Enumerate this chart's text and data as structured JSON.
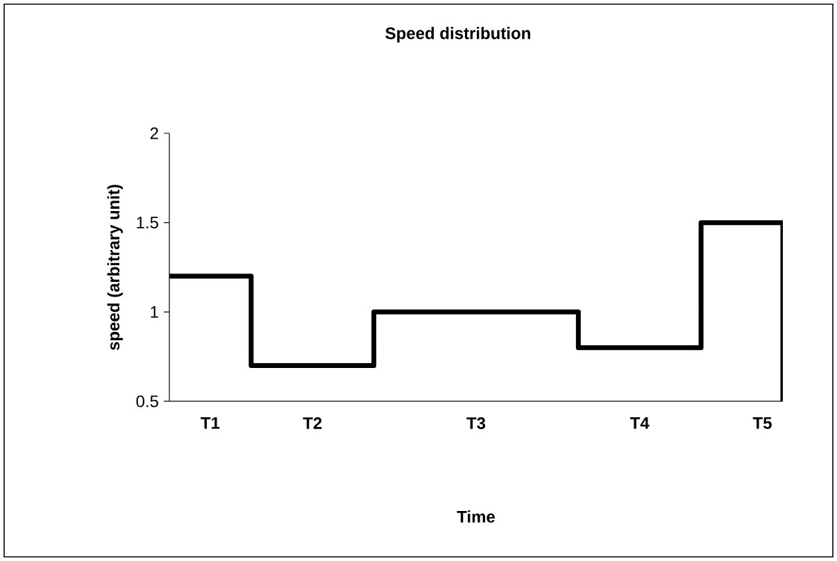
{
  "chart_data": {
    "type": "step",
    "title": "Speed distribution",
    "xlabel": "Time",
    "ylabel": "speed (arbitrary unit)",
    "categories": [
      null,
      null,
      "T1",
      null,
      null,
      null,
      null,
      "T2",
      null,
      null,
      null,
      null,
      null,
      null,
      null,
      "T3",
      null,
      null,
      null,
      null,
      null,
      null,
      null,
      "T4",
      null,
      null,
      null,
      null,
      null,
      "T5",
      null
    ],
    "values": [
      1.2,
      1.2,
      1.2,
      1.2,
      0.7,
      0.7,
      0.7,
      0.7,
      0.7,
      0.7,
      1.0,
      1.0,
      1.0,
      1.0,
      1.0,
      1.0,
      1.0,
      1.0,
      1.0,
      1.0,
      0.8,
      0.8,
      0.8,
      0.8,
      0.8,
      0.8,
      1.5,
      1.5,
      1.5,
      1.5,
      0.5
    ],
    "color": "#000000",
    "marker": "none",
    "line_style": "solid",
    "ylim": [
      0.5,
      2
    ],
    "yticks": [
      0.5,
      1,
      1.5,
      2
    ]
  }
}
